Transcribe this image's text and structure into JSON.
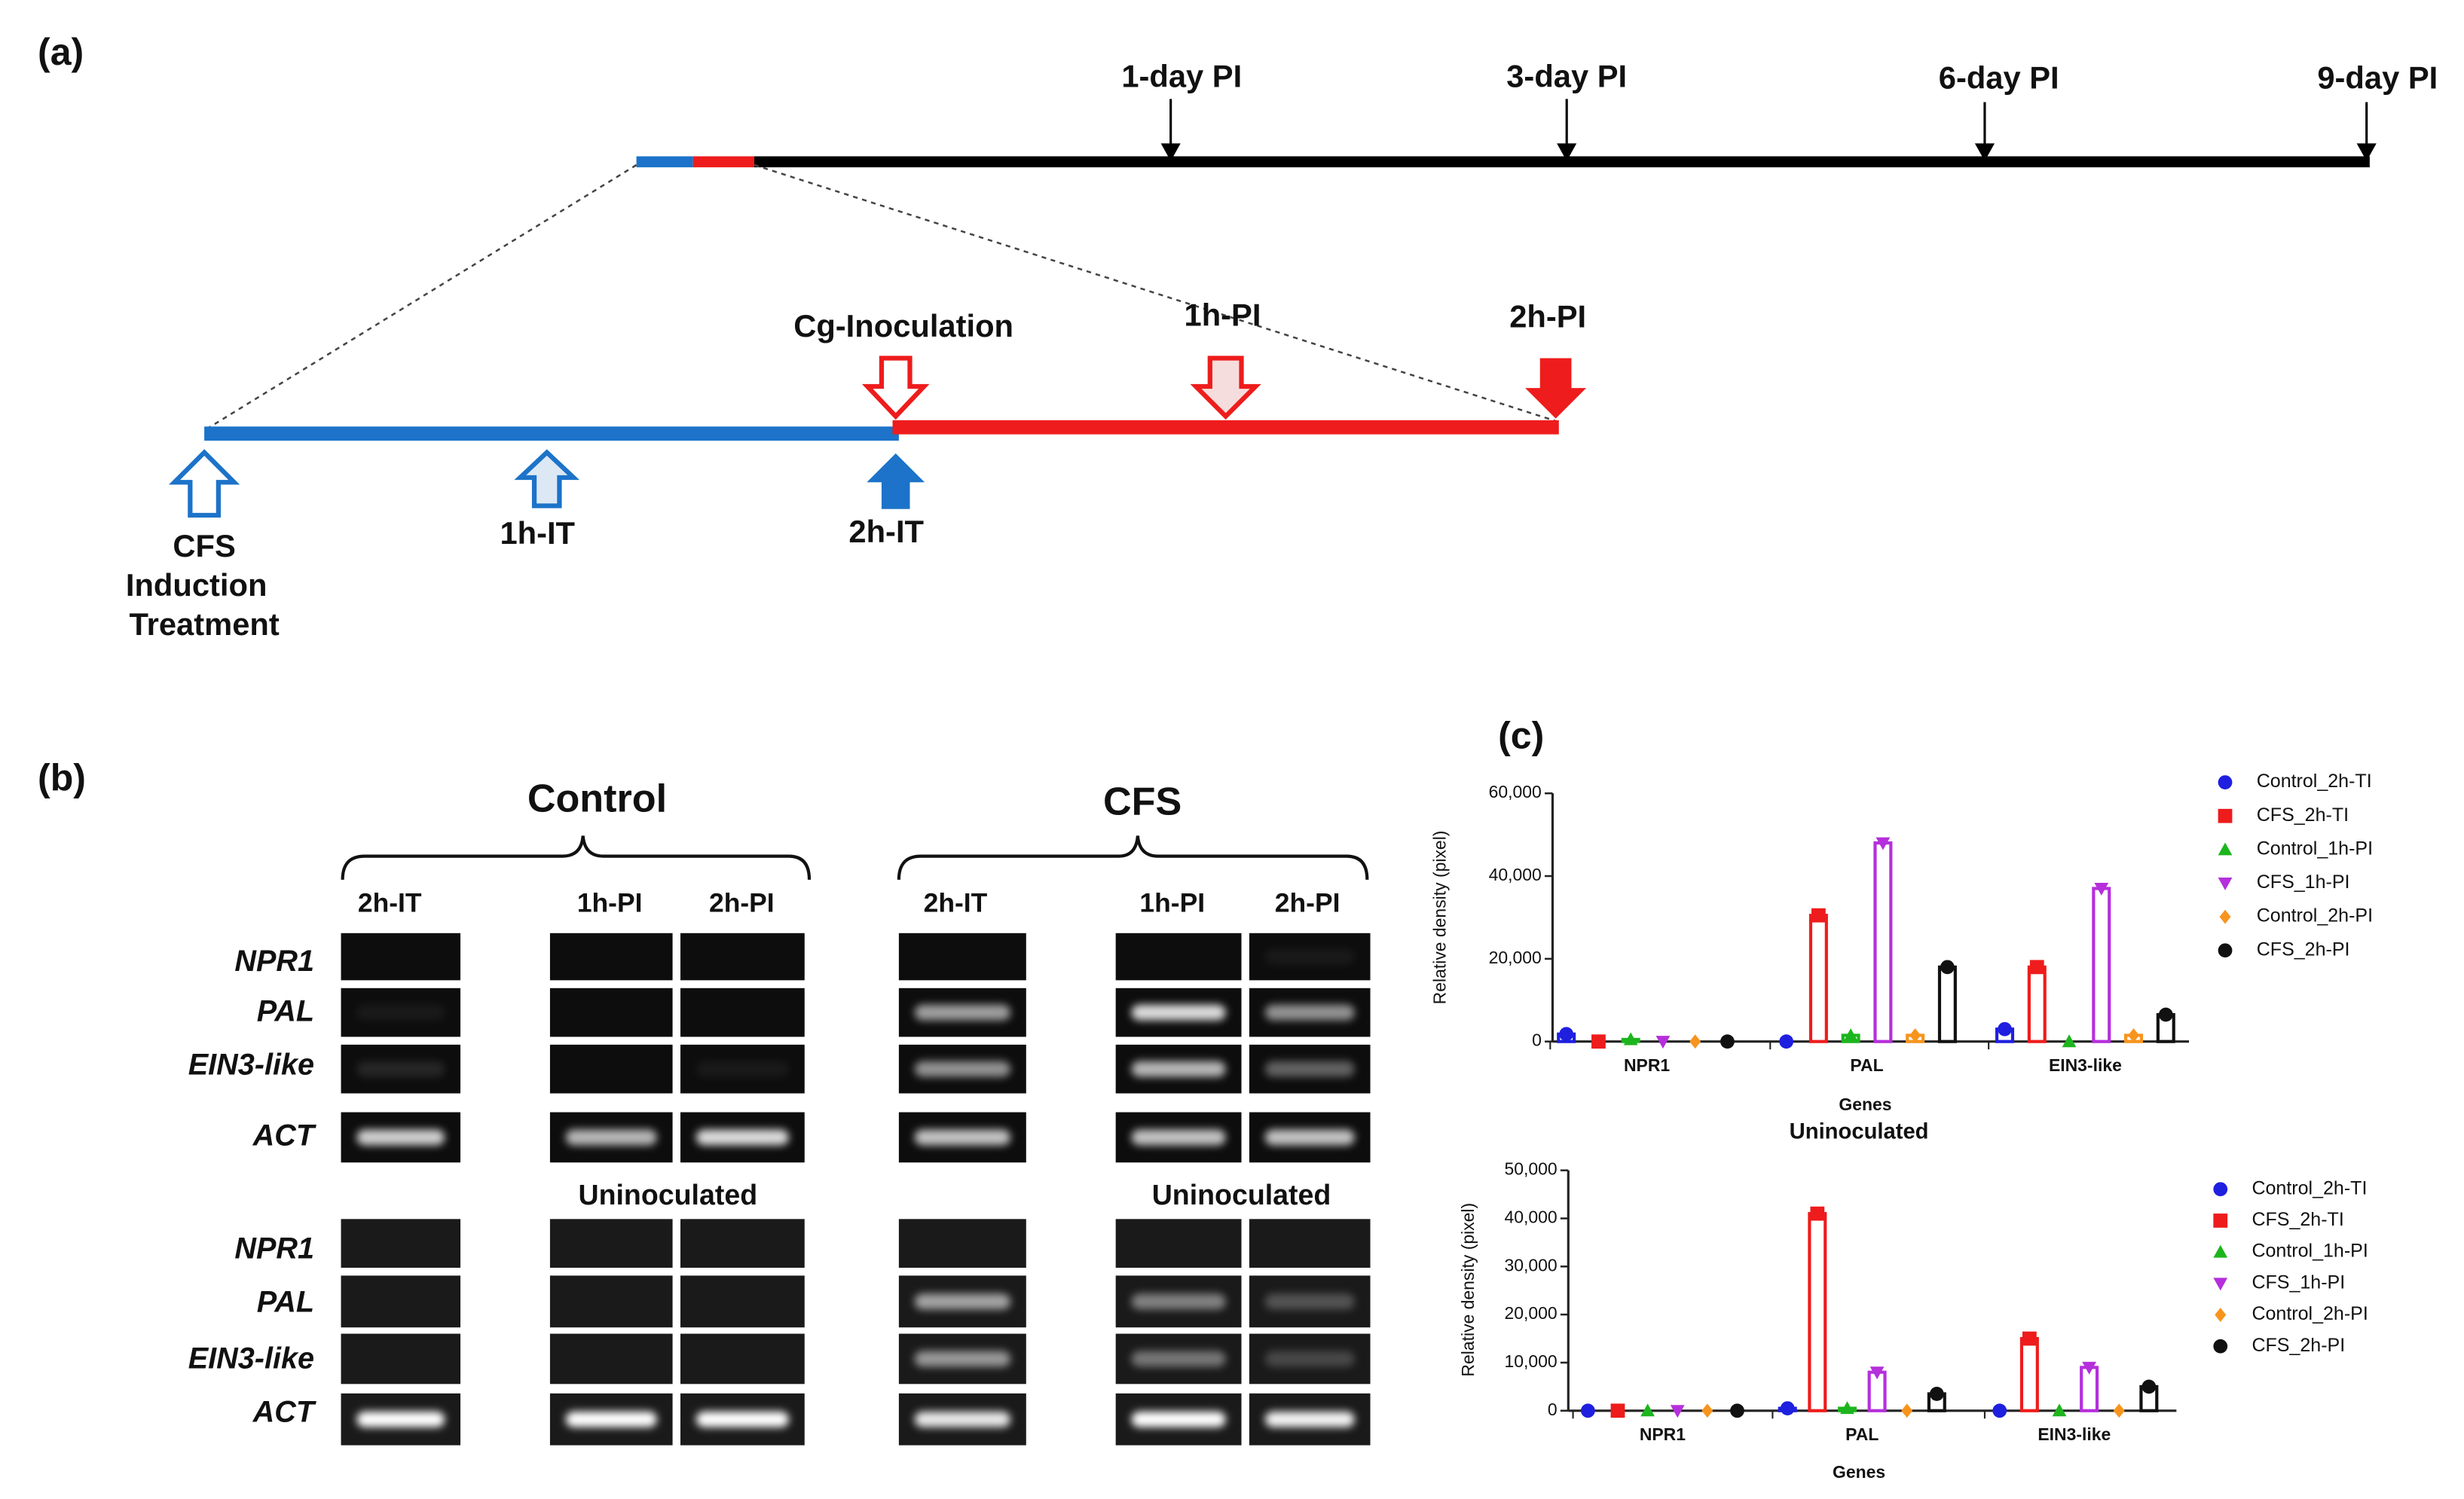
{
  "panel_a": {
    "label": "(a)",
    "days": [
      "1-day PI",
      "3-day PI",
      "6-day PI",
      "9-day PI"
    ],
    "cg_inoculation": "Cg-Inoculation",
    "pi": [
      "1h-PI",
      "2h-PI"
    ],
    "induction": [
      "CFS",
      "Induction",
      "Treatment"
    ],
    "it": [
      "1h-IT",
      "2h-IT"
    ]
  },
  "panel_b": {
    "label": "(b)",
    "groups": [
      {
        "name": "Control",
        "lanes": [
          "2h-IT",
          "1h-PI",
          "2h-PI"
        ],
        "uninoculated": "Uninoculated"
      },
      {
        "name": "CFS",
        "lanes": [
          "2h-IT",
          "1h-PI",
          "2h-PI"
        ],
        "uninoculated": "Uninoculated"
      }
    ],
    "genes": [
      "NPR1",
      "PAL",
      "EIN3-like",
      "ACT"
    ]
  },
  "panel_c": {
    "label": "(c)"
  },
  "chart_data": [
    {
      "type": "bar",
      "y_label": "Relative density (pixel)",
      "x_label": "Genes",
      "categories": [
        "NPR1",
        "PAL",
        "EIN3-like"
      ],
      "ylim": [
        0,
        60000
      ],
      "yticks": [
        0,
        {
          "value": 20000,
          "label": "20,000"
        },
        {
          "value": 40000,
          "label": "40,000"
        },
        {
          "value": 60000,
          "label": "60,000"
        }
      ],
      "series": [
        {
          "name": "Control_2h-TI",
          "color": "#1f1fe0",
          "marker": "circle",
          "values": [
            1800,
            0,
            3000
          ]
        },
        {
          "name": "CFS_2h-TI",
          "color": "#ee1c1c",
          "marker": "square",
          "values": [
            0,
            30500,
            18000
          ]
        },
        {
          "name": "Control_1h-PI",
          "color": "#1db51d",
          "marker": "triangle-up",
          "values": [
            500,
            1500,
            0
          ]
        },
        {
          "name": "CFS_1h-PI",
          "color": "#b52fdc",
          "marker": "triangle-down",
          "values": [
            0,
            48000,
            37000
          ]
        },
        {
          "name": "Control_2h-PI",
          "color": "#f7941d",
          "marker": "diamond",
          "values": [
            0,
            1500,
            1500
          ]
        },
        {
          "name": "CFS_2h-PI",
          "color": "#111111",
          "marker": "circle",
          "values": [
            0,
            18000,
            6500
          ]
        }
      ]
    },
    {
      "type": "bar",
      "title": "Uninoculated",
      "y_label": "Relative density (pixel)",
      "x_label": "Genes",
      "categories": [
        "NPR1",
        "PAL",
        "EIN3-like"
      ],
      "ylim": [
        0,
        50000
      ],
      "yticks": [
        0,
        {
          "value": 10000,
          "label": "10,000"
        },
        {
          "value": 20000,
          "label": "20,000"
        },
        {
          "value": 30000,
          "label": "30,000"
        },
        {
          "value": 40000,
          "label": "40,000"
        },
        {
          "value": 50000,
          "label": "50,000"
        }
      ],
      "series": [
        {
          "name": "Control_2h-TI",
          "color": "#1f1fe0",
          "marker": "circle",
          "values": [
            0,
            500,
            0
          ]
        },
        {
          "name": "CFS_2h-TI",
          "color": "#ee1c1c",
          "marker": "square",
          "values": [
            0,
            41000,
            15000
          ]
        },
        {
          "name": "Control_1h-PI",
          "color": "#1db51d",
          "marker": "triangle-up",
          "values": [
            0,
            500,
            0
          ]
        },
        {
          "name": "CFS_1h-PI",
          "color": "#b52fdc",
          "marker": "triangle-down",
          "values": [
            0,
            8000,
            9000
          ]
        },
        {
          "name": "Control_2h-PI",
          "color": "#f7941d",
          "marker": "diamond",
          "values": [
            0,
            0,
            0
          ]
        },
        {
          "name": "CFS_2h-PI",
          "color": "#111111",
          "marker": "circle",
          "values": [
            0,
            3500,
            5000
          ]
        }
      ]
    }
  ]
}
